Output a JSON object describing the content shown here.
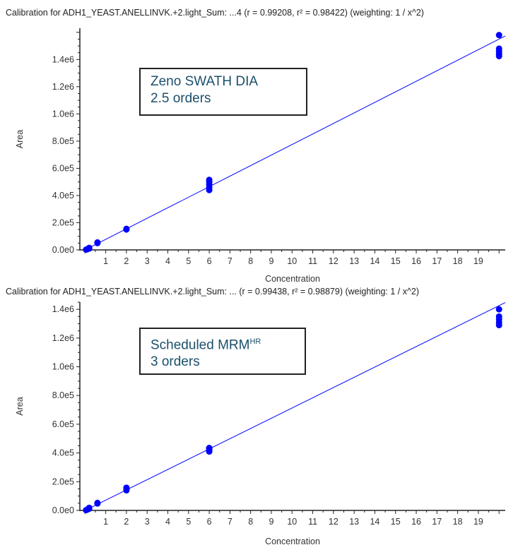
{
  "chart_data": [
    {
      "type": "scatter",
      "title": "Calibration for ADH1_YEAST.ANELLINVK.+2.light_Sum: ...4 (r = 0.99208, r² = 0.98422)  (weighting: 1 / x^2)",
      "xlabel": "Concentration",
      "ylabel": "Area",
      "xlim": [
        -0.25,
        20.3
      ],
      "ylim": [
        0,
        1630000
      ],
      "xticks": [
        "1",
        "2",
        "3",
        "4",
        "5",
        "6",
        "7",
        "8",
        "9",
        "10",
        "11",
        "12",
        "13",
        "14",
        "15",
        "16",
        "17",
        "18",
        "19"
      ],
      "yticks": [
        {
          "v": 0,
          "label": "0.0e0"
        },
        {
          "v": 200000,
          "label": "2.0e5"
        },
        {
          "v": 400000,
          "label": "4.0e5"
        },
        {
          "v": 600000,
          "label": "6.0e5"
        },
        {
          "v": 800000,
          "label": "8.0e5"
        },
        {
          "v": 1000000,
          "label": "1.0e6"
        },
        {
          "v": 1200000,
          "label": "1.2e6"
        },
        {
          "v": 1400000,
          "label": "1.4e6"
        }
      ],
      "fit": {
        "slope": 77500,
        "intercept": 0
      },
      "points": [
        [
          0.05,
          2000
        ],
        [
          0.1,
          5000
        ],
        [
          0.2,
          10000
        ],
        [
          0.2,
          15000
        ],
        [
          0.6,
          50000
        ],
        [
          0.6,
          55000
        ],
        [
          2,
          150000
        ],
        [
          2,
          155000
        ],
        [
          6,
          440000
        ],
        [
          6,
          460000
        ],
        [
          6,
          480000
        ],
        [
          6,
          500000
        ],
        [
          6,
          515000
        ],
        [
          20,
          1425000
        ],
        [
          20,
          1440000
        ],
        [
          20,
          1460000
        ],
        [
          20,
          1480000
        ],
        [
          20,
          1580000
        ]
      ],
      "annotation": {
        "line1": "Zeno SWATH DIA",
        "line2": "2.5 orders"
      },
      "color": "#0000ff"
    },
    {
      "type": "scatter",
      "title": "Calibration for ADH1_YEAST.ANELLINVK.+2.light_Sum: ... (r = 0.99438, r² = 0.98879)  (weighting: 1 / x^2)",
      "xlabel": "Concentration",
      "ylabel": "Area",
      "xlim": [
        -0.25,
        20.3
      ],
      "ylim": [
        0,
        1450000
      ],
      "xticks": [
        "1",
        "2",
        "3",
        "4",
        "5",
        "6",
        "7",
        "8",
        "9",
        "10",
        "11",
        "12",
        "13",
        "14",
        "15",
        "16",
        "17",
        "18",
        "19"
      ],
      "yticks": [
        {
          "v": 0,
          "label": "0.0e0"
        },
        {
          "v": 200000,
          "label": "2.0e5"
        },
        {
          "v": 400000,
          "label": "4.0e5"
        },
        {
          "v": 600000,
          "label": "6.0e5"
        },
        {
          "v": 800000,
          "label": "8.0e5"
        },
        {
          "v": 1000000,
          "label": "1.0e6"
        },
        {
          "v": 1200000,
          "label": "1.2e6"
        },
        {
          "v": 1400000,
          "label": "1.4e6"
        }
      ],
      "fit": {
        "slope": 71300,
        "intercept": 0
      },
      "points": [
        [
          0.05,
          2000
        ],
        [
          0.1,
          5000
        ],
        [
          0.2,
          12000
        ],
        [
          0.2,
          18000
        ],
        [
          0.6,
          48000
        ],
        [
          0.6,
          52000
        ],
        [
          2,
          140000
        ],
        [
          2,
          150000
        ],
        [
          2,
          158000
        ],
        [
          6,
          410000
        ],
        [
          6,
          420000
        ],
        [
          6,
          430000
        ],
        [
          6,
          435000
        ],
        [
          20,
          1290000
        ],
        [
          20,
          1310000
        ],
        [
          20,
          1330000
        ],
        [
          20,
          1350000
        ],
        [
          20,
          1400000
        ]
      ],
      "annotation": {
        "line1": "Scheduled MRM",
        "sup": "HR",
        "line2": "3 orders"
      },
      "color": "#0000ff"
    }
  ]
}
